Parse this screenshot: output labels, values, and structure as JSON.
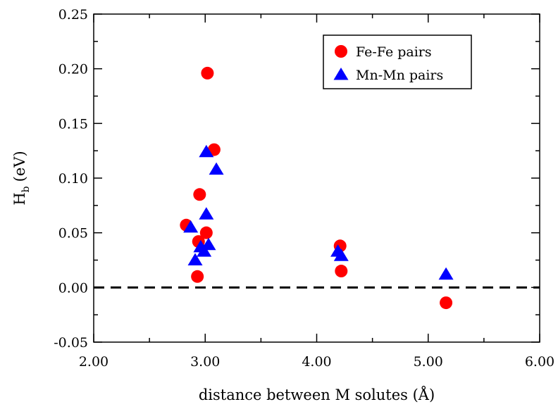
{
  "chart_data": {
    "type": "scatter",
    "title": "",
    "xlabel": "distance between M solutes (Å)",
    "ylabel": {
      "main": "H",
      "subscript": "b",
      "unit": "(eV)"
    },
    "xlim": [
      2.0,
      6.0
    ],
    "ylim": [
      -0.05,
      0.25
    ],
    "xticks": [
      2.0,
      3.0,
      4.0,
      5.0,
      6.0
    ],
    "xtick_labels": [
      "2.00",
      "3.00",
      "4.00",
      "5.00",
      "6.00"
    ],
    "yticks": [
      -0.05,
      0.0,
      0.05,
      0.1,
      0.15,
      0.2,
      0.25
    ],
    "ytick_labels": [
      "-0.05",
      "0.00",
      "0.05",
      "0.10",
      "0.15",
      "0.20",
      "0.25"
    ],
    "grid": false,
    "legend_position": "top-right",
    "reference_line": {
      "y": 0.0,
      "style": "dashed"
    },
    "series": [
      {
        "name": "Fe-Fe pairs",
        "marker": "circle",
        "color": "#ff0000",
        "points": [
          {
            "x": 2.83,
            "y": 0.057
          },
          {
            "x": 2.93,
            "y": 0.01
          },
          {
            "x": 2.94,
            "y": 0.042
          },
          {
            "x": 2.95,
            "y": 0.085
          },
          {
            "x": 3.01,
            "y": 0.05
          },
          {
            "x": 3.02,
            "y": 0.196
          },
          {
            "x": 3.08,
            "y": 0.126
          },
          {
            "x": 4.21,
            "y": 0.038
          },
          {
            "x": 4.22,
            "y": 0.015
          },
          {
            "x": 5.16,
            "y": -0.014
          }
        ]
      },
      {
        "name": "Mn-Mn pairs",
        "marker": "triangle",
        "color": "#0000ff",
        "points": [
          {
            "x": 2.87,
            "y": 0.055
          },
          {
            "x": 2.91,
            "y": 0.025
          },
          {
            "x": 2.96,
            "y": 0.037
          },
          {
            "x": 2.99,
            "y": 0.033
          },
          {
            "x": 3.01,
            "y": 0.124
          },
          {
            "x": 3.01,
            "y": 0.067
          },
          {
            "x": 3.03,
            "y": 0.039
          },
          {
            "x": 3.1,
            "y": 0.108
          },
          {
            "x": 4.19,
            "y": 0.033
          },
          {
            "x": 4.22,
            "y": 0.029
          },
          {
            "x": 5.16,
            "y": 0.012
          }
        ]
      }
    ]
  }
}
